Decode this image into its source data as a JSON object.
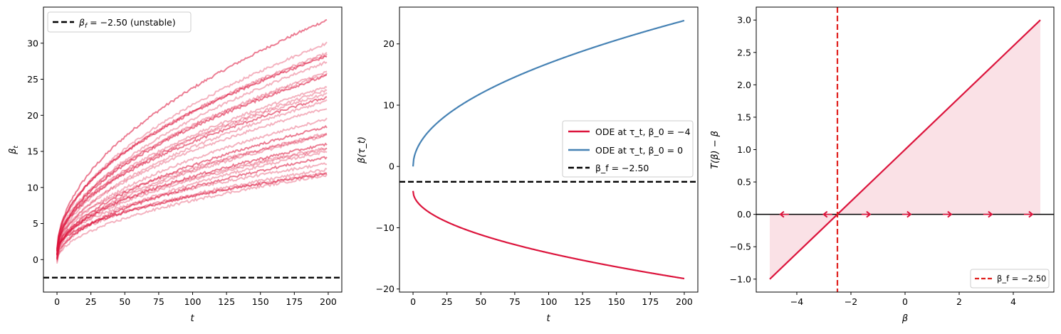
{
  "colors": {
    "crimson": "#dc143c",
    "steelblue": "#4682b4",
    "black": "#000000",
    "red_dashed": "#e0201e"
  },
  "chart_data": [
    {
      "type": "line",
      "xlabel": "t",
      "ylabel": "β_t",
      "ylabel_main": "β",
      "ylabel_sub": "t",
      "xlim": [
        -10,
        210
      ],
      "ylim": [
        -4.5,
        35
      ],
      "xticks": [
        0,
        25,
        50,
        75,
        100,
        125,
        150,
        175,
        200
      ],
      "yticks": [
        0,
        5,
        10,
        15,
        20,
        25,
        30
      ],
      "legend": {
        "position": "top-left",
        "entries": [
          {
            "label": "β_f = −2.50 (unstable)",
            "label_main": "β",
            "label_sub": "f",
            "label_rest": " = −2.50 (unstable)",
            "style": "dashed",
            "color": "#000000"
          }
        ]
      },
      "hline": {
        "y": -2.5,
        "style": "dashed",
        "color": "#000000"
      },
      "trajectories": {
        "count": 30,
        "x_range": [
          0,
          199
        ],
        "color": "#dc143c",
        "final_values": [
          33.2,
          30.0,
          28.6,
          28.4,
          28.2,
          27.4,
          26.0,
          25.7,
          25.5,
          24.0,
          23.5,
          23.0,
          22.5,
          22.0,
          21.0,
          19.5,
          18.4,
          17.5,
          17.3,
          17.2,
          16.0,
          15.5,
          15.3,
          15.0,
          14.2,
          13.3,
          12.5,
          12.0,
          11.9,
          11.7
        ]
      }
    },
    {
      "type": "line",
      "xlabel": "t",
      "ylabel": "β(τ_t)",
      "xlim": [
        -10,
        210
      ],
      "ylim": [
        -20.5,
        26
      ],
      "xticks": [
        0,
        25,
        50,
        75,
        100,
        125,
        150,
        175,
        200
      ],
      "yticks": [
        -20,
        -10,
        0,
        10,
        20
      ],
      "legend": {
        "position": "center-right",
        "entries": [
          {
            "label": "ODE at τ_t, β_0 = −4",
            "style": "solid",
            "color": "#dc143c"
          },
          {
            "label": "ODE at τ_t, β_0 = 0",
            "style": "solid",
            "color": "#4682b4"
          },
          {
            "label": "β_f = −2.50",
            "style": "dashed",
            "color": "#000000"
          }
        ]
      },
      "hline": {
        "y": -2.5,
        "style": "dashed",
        "color": "#000000"
      },
      "series": [
        {
          "name": "ODE at τ_t, β_0 = −4",
          "color": "#dc143c",
          "beta0": -4,
          "x": [
            0,
            1,
            5,
            10,
            25,
            50,
            75,
            100,
            125,
            150,
            175,
            200
          ],
          "y": [
            -4.0,
            -5.0,
            -6.2,
            -7.1,
            -9.0,
            -11.3,
            -13.0,
            -14.5,
            -15.7,
            -16.8,
            -17.6,
            -18.3
          ]
        },
        {
          "name": "ODE at τ_t, β_0 = 0",
          "color": "#4682b4",
          "beta0": 0,
          "x": [
            0,
            1,
            5,
            10,
            25,
            50,
            75,
            100,
            125,
            150,
            175,
            200
          ],
          "y": [
            0.0,
            1.7,
            3.8,
            5.4,
            8.6,
            12.1,
            14.8,
            17.1,
            19.1,
            20.9,
            22.4,
            23.8
          ]
        }
      ]
    },
    {
      "type": "line",
      "xlabel": "β",
      "ylabel": "T(β) − β",
      "xlim": [
        -5.5,
        5.5
      ],
      "ylim": [
        -1.2,
        3.2
      ],
      "xticks": [
        -4,
        -2,
        0,
        2,
        4
      ],
      "yticks": [
        -1.0,
        -0.5,
        0.0,
        0.5,
        1.0,
        1.5,
        2.0,
        2.5,
        3.0
      ],
      "legend": {
        "position": "lower-right",
        "entries": [
          {
            "label": "β_f = −2.50",
            "style": "dashed",
            "color": "#e0201e"
          }
        ]
      },
      "series": [
        {
          "name": "",
          "color": "#dc143c",
          "x": [
            -5,
            5
          ],
          "y": [
            -1.0,
            3.0
          ]
        }
      ],
      "fill": {
        "between": "curve and 0",
        "color": "#dc143c",
        "alpha": 0.13
      },
      "hline": {
        "y": 0,
        "style": "solid",
        "color": "#000000"
      },
      "vline": {
        "x": -2.5,
        "style": "dashed",
        "color": "#e0201e"
      },
      "arrows": [
        {
          "x": -4.45,
          "direction": "left"
        },
        {
          "x": -2.85,
          "direction": "left"
        },
        {
          "x": -1.45,
          "direction": "right"
        },
        {
          "x": 0.05,
          "direction": "right"
        },
        {
          "x": 1.55,
          "direction": "right"
        },
        {
          "x": 3.05,
          "direction": "right"
        },
        {
          "x": 4.55,
          "direction": "right"
        }
      ]
    }
  ]
}
